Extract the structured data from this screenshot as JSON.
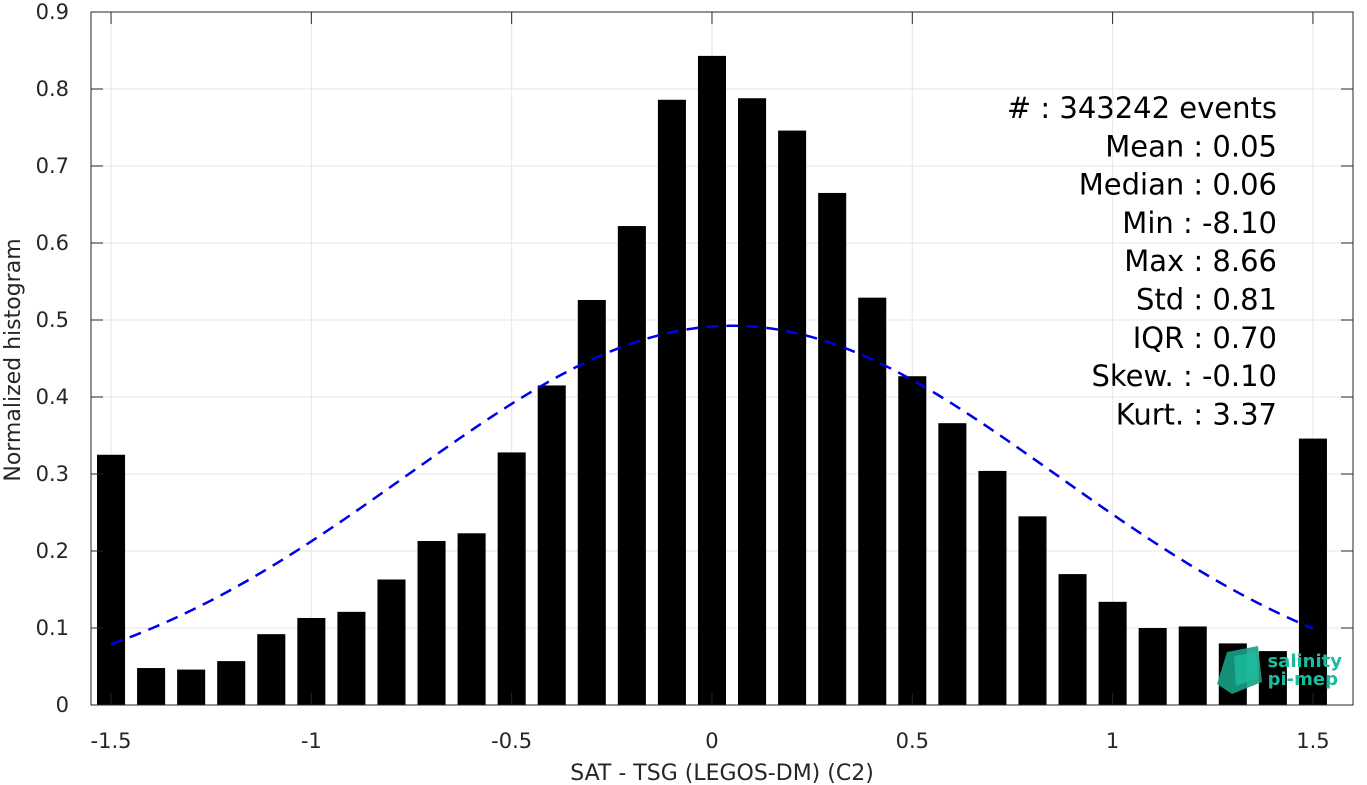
{
  "chart_data": {
    "type": "bar",
    "xlabel": "SAT - TSG (LEGOS-DM) (C2)",
    "ylabel": "Normalized histogram",
    "xlim": [
      -1.55,
      1.6
    ],
    "ylim": [
      0,
      0.9
    ],
    "grid": true,
    "x_ticks": [
      -1.5,
      -1,
      -0.5,
      0,
      0.5,
      1,
      1.5
    ],
    "x_tick_labels": [
      "-1.5",
      "-1",
      "-0.5",
      "0",
      "0.5",
      "1",
      "1.5"
    ],
    "y_ticks": [
      0,
      0.1,
      0.2,
      0.3,
      0.4,
      0.5,
      0.6,
      0.7,
      0.8,
      0.9
    ],
    "y_tick_labels": [
      "0",
      "0.1",
      "0.2",
      "0.3",
      "0.4",
      "0.5",
      "0.6",
      "0.7",
      "0.8",
      "0.9"
    ],
    "bar_centers": [
      -1.5,
      -1.4,
      -1.3,
      -1.2,
      -1.1,
      -1.0,
      -0.9,
      -0.8,
      -0.7,
      -0.6,
      -0.5,
      -0.4,
      -0.3,
      -0.2,
      -0.1,
      0.0,
      0.1,
      0.2,
      0.3,
      0.4,
      0.5,
      0.6,
      0.7,
      0.8,
      0.9,
      1.0,
      1.1,
      1.2,
      1.3,
      1.4,
      1.5
    ],
    "bar_width": 0.07,
    "values": [
      0.325,
      0.048,
      0.046,
      0.057,
      0.092,
      0.113,
      0.121,
      0.163,
      0.213,
      0.223,
      0.328,
      0.415,
      0.526,
      0.622,
      0.786,
      0.843,
      0.788,
      0.746,
      0.665,
      0.529,
      0.427,
      0.366,
      0.304,
      0.245,
      0.17,
      0.134,
      0.1,
      0.102,
      0.08,
      0.07,
      0.346
    ],
    "bar_color": "#000000",
    "fit_curve": {
      "type": "gaussian",
      "mean": 0.05,
      "std": 0.81,
      "range": [
        -1.5,
        1.5
      ],
      "color": "#0000e6",
      "style": "dashed"
    },
    "stats": [
      {
        "label": "#  : 343242 events"
      },
      {
        "label": "Mean : 0.05"
      },
      {
        "label": "Median : 0.06"
      },
      {
        "label": "Min : -8.10"
      },
      {
        "label": "Max : 8.66"
      },
      {
        "label": "Std : 0.81"
      },
      {
        "label": "IQR : 0.70"
      },
      {
        "label": "Skew. : -0.10"
      },
      {
        "label": "Kurt. : 3.37"
      }
    ]
  },
  "logo": {
    "line1": "salinity",
    "line2": "pi-mep",
    "color": "#1abc9c"
  }
}
